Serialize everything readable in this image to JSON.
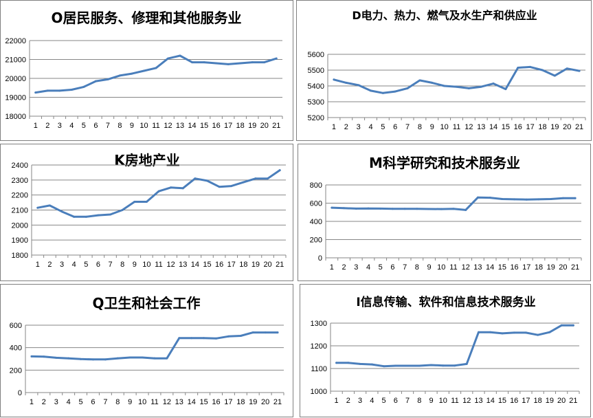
{
  "chart_data": [
    {
      "type": "line",
      "title": "O居民服务、修理和其他服务业",
      "x": [
        1,
        2,
        3,
        4,
        5,
        6,
        7,
        8,
        9,
        10,
        11,
        12,
        13,
        14,
        15,
        16,
        17,
        18,
        19,
        20,
        21
      ],
      "values": [
        19250,
        19350,
        19350,
        19400,
        19550,
        19850,
        19950,
        20150,
        20250,
        20400,
        20550,
        21050,
        21200,
        20850,
        20850,
        20800,
        20750,
        20800,
        20850,
        20850,
        21050
      ],
      "ylim": [
        18000,
        22000
      ],
      "yticks": [
        18000,
        19000,
        20000,
        21000,
        22000
      ],
      "grid": true
    },
    {
      "type": "line",
      "title": "D电力、热力、燃气及水生产和供应业",
      "x": [
        1,
        2,
        3,
        4,
        5,
        6,
        7,
        8,
        9,
        10,
        11,
        12,
        13,
        14,
        15,
        16,
        17,
        18,
        19,
        20,
        21
      ],
      "values": [
        5440,
        5420,
        5405,
        5370,
        5355,
        5365,
        5385,
        5435,
        5420,
        5400,
        5395,
        5385,
        5395,
        5415,
        5380,
        5515,
        5520,
        5500,
        5465,
        5510,
        5495
      ],
      "ylim": [
        5200,
        5600
      ],
      "yticks": [
        5200,
        5300,
        5400,
        5500,
        5600
      ],
      "grid": true
    },
    {
      "type": "line",
      "title": "K房地产业",
      "x": [
        1,
        2,
        3,
        4,
        5,
        6,
        7,
        8,
        9,
        10,
        11,
        12,
        13,
        14,
        15,
        16,
        17,
        18,
        19,
        20,
        21
      ],
      "values": [
        2115,
        2130,
        2090,
        2055,
        2055,
        2065,
        2070,
        2100,
        2155,
        2155,
        2225,
        2250,
        2245,
        2310,
        2295,
        2255,
        2260,
        2285,
        2310,
        2310,
        2365
      ],
      "ylim": [
        1800,
        2400
      ],
      "yticks": [
        1800,
        1900,
        2000,
        2100,
        2200,
        2300,
        2400
      ],
      "grid": true
    },
    {
      "type": "line",
      "title": "M科学研究和技术服务业",
      "x": [
        1,
        2,
        3,
        4,
        5,
        6,
        7,
        8,
        9,
        10,
        11,
        12,
        13,
        14,
        15,
        16,
        17,
        18,
        19,
        20,
        21
      ],
      "values": [
        550,
        545,
        540,
        542,
        540,
        538,
        538,
        538,
        536,
        535,
        538,
        525,
        662,
        660,
        645,
        642,
        640,
        642,
        645,
        655,
        655
      ],
      "ylim": [
        0,
        800
      ],
      "yticks": [
        0,
        200,
        400,
        600,
        800
      ],
      "grid": true
    },
    {
      "type": "line",
      "title": "Q卫生和社会工作",
      "x": [
        1,
        2,
        3,
        4,
        5,
        6,
        7,
        8,
        9,
        10,
        11,
        12,
        13,
        14,
        15,
        16,
        17,
        18,
        19,
        20,
        21
      ],
      "values": [
        322,
        320,
        310,
        305,
        298,
        295,
        295,
        305,
        312,
        312,
        305,
        305,
        485,
        485,
        485,
        482,
        500,
        505,
        535,
        535,
        535
      ],
      "ylim": [
        0,
        600
      ],
      "yticks": [
        0,
        200,
        400,
        600
      ],
      "grid": true
    },
    {
      "type": "line",
      "title": "I信息传输、软件和信息技术服务业",
      "x": [
        1,
        2,
        3,
        4,
        5,
        6,
        7,
        8,
        9,
        10,
        11,
        12,
        13,
        14,
        15,
        16,
        17,
        18,
        19,
        20,
        21
      ],
      "values": [
        1125,
        1125,
        1120,
        1118,
        1110,
        1112,
        1112,
        1112,
        1115,
        1113,
        1113,
        1120,
        1260,
        1260,
        1255,
        1258,
        1258,
        1248,
        1260,
        1290,
        1290
      ],
      "ylim": [
        1000,
        1300
      ],
      "yticks": [
        1000,
        1100,
        1200,
        1300
      ],
      "grid": true
    }
  ]
}
